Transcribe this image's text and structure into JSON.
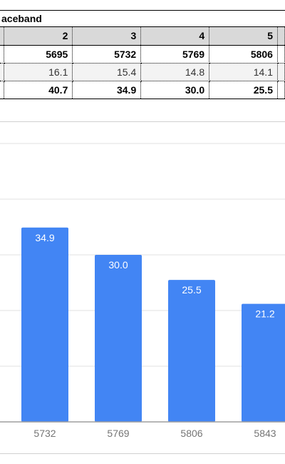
{
  "sheet": {
    "title": "aceband",
    "header": [
      "2",
      "3",
      "4",
      "5"
    ],
    "rows": [
      [
        "5695",
        "5732",
        "5769",
        "5806"
      ],
      [
        "16.1",
        "15.4",
        "14.8",
        "14.1"
      ],
      [
        "40.7",
        "34.9",
        "30.0",
        "25.5"
      ]
    ]
  },
  "chart_data": {
    "type": "bar",
    "categories": [
      "5732",
      "5769",
      "5806",
      "5843"
    ],
    "values": [
      34.9,
      30.0,
      25.5,
      21.2
    ],
    "data_labels": [
      "34.9",
      "30.0",
      "25.5",
      "21.2"
    ],
    "bar_color": "#4285f4",
    "ylim": [
      0,
      50
    ],
    "grid": true,
    "title": "",
    "xlabel": "",
    "ylabel": ""
  }
}
